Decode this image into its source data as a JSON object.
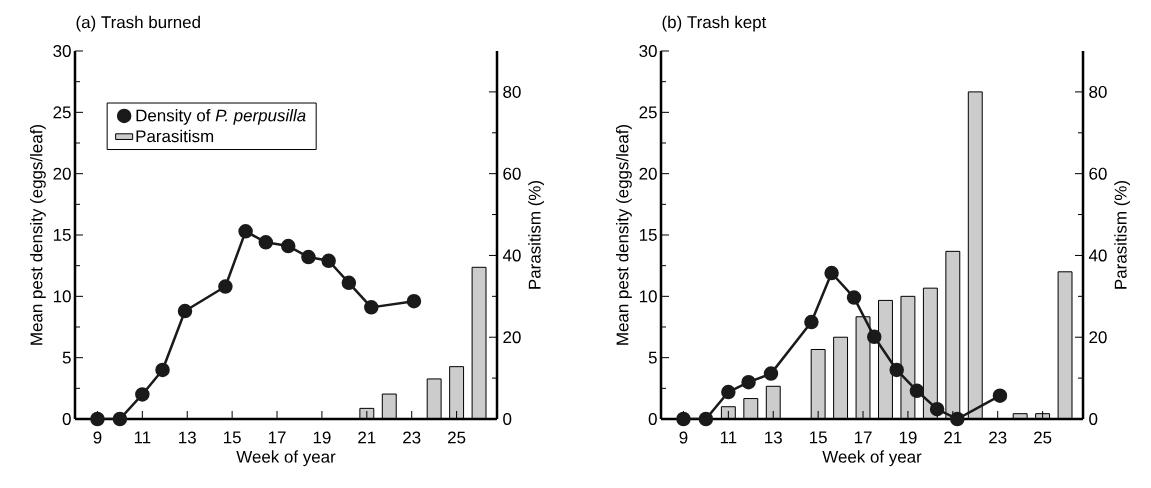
{
  "chart_data": [
    {
      "type": "bar",
      "title": "(a) Trash burned",
      "xlabel": "Week of year",
      "ylabel": "Mean pest density (eggs/leaf)",
      "y2label": "Parasitism (%)",
      "xlim": [
        8,
        26.8
      ],
      "xticks": [
        9,
        11,
        13,
        15,
        17,
        19,
        21,
        23,
        25
      ],
      "ylim": [
        0,
        30
      ],
      "yticks": [
        0,
        5,
        10,
        15,
        20,
        25,
        30
      ],
      "y2lim": [
        0,
        90
      ],
      "y2ticks": [
        0,
        20,
        40,
        60,
        80
      ],
      "legend": "top left",
      "marker": "circle",
      "line_style": "solid",
      "series": [
        {
          "name": "Density of *P. perpusilla*",
          "type": "line",
          "color": "#1a1a1a",
          "x": [
            9,
            10,
            11,
            11.9,
            12.9,
            14.7,
            15.6,
            16.5,
            17.5,
            18.4,
            19.3,
            20.2,
            21.2,
            23.1
          ],
          "values": [
            0,
            0,
            2,
            4,
            8.8,
            10.8,
            15.3,
            14.4,
            14.1,
            13.2,
            12.9,
            11.1,
            9.1,
            9.6
          ]
        },
        {
          "name": "Parasitism",
          "axis": "y2",
          "color": "#cccccc",
          "x": [
            21,
            22,
            24,
            25,
            26
          ],
          "values": [
            2.6,
            6.1,
            9.8,
            12.8,
            37.1
          ]
        }
      ]
    },
    {
      "type": "bar",
      "title": "(b) Trash kept",
      "xlabel": "Week of year",
      "ylabel": "Mean pest density (eggs/leaf)",
      "y2label": "Parasitism (%)",
      "xlim": [
        8,
        26.8
      ],
      "xticks": [
        9,
        11,
        13,
        15,
        17,
        19,
        21,
        23,
        25
      ],
      "ylim": [
        0,
        30
      ],
      "yticks": [
        0,
        5,
        10,
        15,
        20,
        25,
        30
      ],
      "y2lim": [
        0,
        90
      ],
      "y2ticks": [
        0,
        20,
        40,
        60,
        80
      ],
      "marker": "circle",
      "line_style": "solid",
      "series": [
        {
          "type": "line",
          "color": "#1a1a1a",
          "x": [
            9,
            10,
            11,
            11.9,
            12.9,
            14.7,
            15.6,
            16.6,
            17.5,
            18.5,
            19.4,
            20.3,
            21.2,
            23.1
          ],
          "values": [
            0,
            0,
            2.2,
            3,
            3.7,
            7.9,
            11.9,
            9.9,
            6.7,
            4,
            2.3,
            0.8,
            0,
            1.9
          ]
        },
        {
          "axis": "y2",
          "color": "#cccccc",
          "x": [
            11,
            12,
            13,
            15,
            16,
            17,
            18,
            19,
            20,
            21,
            22,
            24,
            25,
            26
          ],
          "values": [
            3,
            5,
            8,
            17,
            20,
            25,
            29,
            30,
            32,
            41,
            80,
            1.3,
            1.3,
            36
          ]
        }
      ]
    }
  ]
}
